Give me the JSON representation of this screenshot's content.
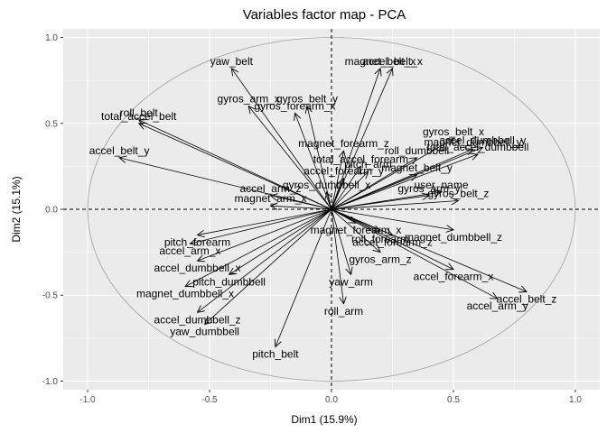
{
  "chart_data": {
    "type": "scatter",
    "title": "Variables factor map - PCA",
    "xlabel": "Dim1 (15.9%)",
    "ylabel": "Dim2 (15.1%)",
    "xlim": [
      -1.1,
      1.1
    ],
    "ylim": [
      -1.05,
      1.05
    ],
    "x_ticks": [
      -1.0,
      -0.5,
      0.0,
      0.5,
      1.0
    ],
    "y_ticks": [
      -1.0,
      -0.5,
      0.0,
      0.5,
      1.0
    ],
    "x_tick_labels": [
      "-1.0",
      "-0.5",
      "0.0",
      "0.5",
      "1.0"
    ],
    "y_tick_labels": [
      "-1.0",
      "-0.5",
      "0.0",
      "0.5",
      "1.0"
    ],
    "grid": true,
    "unit_circle": true,
    "reference_lines": {
      "x": 0,
      "y": 0,
      "style": "dashed"
    },
    "background_color": "#ebebeb",
    "grid_color": "#ffffff",
    "variables": [
      {
        "label": "yaw_belt",
        "x": -0.41,
        "y": 0.82
      },
      {
        "label": "magnet_belt_x",
        "x": 0.2,
        "y": 0.82
      },
      {
        "label": "accel_belt_x",
        "x": 0.25,
        "y": 0.82
      },
      {
        "label": "gyros_belt_y",
        "x": -0.1,
        "y": 0.6
      },
      {
        "label": "gyros_arm_x",
        "x": -0.34,
        "y": 0.6
      },
      {
        "label": "gyros_forearm_x",
        "x": -0.15,
        "y": 0.56
      },
      {
        "label": "roll_belt",
        "x": -0.79,
        "y": 0.52
      },
      {
        "label": "total_accel_belt",
        "x": -0.79,
        "y": 0.5
      },
      {
        "label": "accel_belt_y",
        "x": -0.87,
        "y": 0.3
      },
      {
        "label": "gyros_belt_x",
        "x": 0.5,
        "y": 0.41
      },
      {
        "label": "magnet_dumbbell_y",
        "x": 0.58,
        "y": 0.35
      },
      {
        "label": "accel_dumbbell_y",
        "x": 0.62,
        "y": 0.36
      },
      {
        "label": "total_accel_dumbbell",
        "x": 0.6,
        "y": 0.32
      },
      {
        "label": "roll_dumbbell",
        "x": 0.35,
        "y": 0.3
      },
      {
        "label": "magnet_forearm_z",
        "x": 0.05,
        "y": 0.34
      },
      {
        "label": "total_accel_forearm",
        "x": 0.12,
        "y": 0.25
      },
      {
        "label": "pitch_arm",
        "x": 0.15,
        "y": 0.22
      },
      {
        "label": "magnet_belt_y",
        "x": 0.35,
        "y": 0.2
      },
      {
        "label": "accel_forearm_y",
        "x": 0.05,
        "y": 0.18
      },
      {
        "label": "accel_arm_z",
        "x": -0.25,
        "y": 0.08
      },
      {
        "label": "gyros_dumbbell_x",
        "x": -0.02,
        "y": 0.1
      },
      {
        "label": "magnet_arm_x",
        "x": -0.25,
        "y": 0.02
      },
      {
        "label": "gyros_arm_y",
        "x": 0.4,
        "y": 0.08
      },
      {
        "label": "user_name",
        "x": 0.45,
        "y": 0.1
      },
      {
        "label": "gyros_belt_z",
        "x": 0.52,
        "y": 0.05
      },
      {
        "label": "magnet_forearm_x",
        "x": 0.1,
        "y": -0.08
      },
      {
        "label": "roll_forearm",
        "x": 0.2,
        "y": -0.13
      },
      {
        "label": "accel_forearm_z",
        "x": 0.25,
        "y": -0.15
      },
      {
        "label": "magnet_dumbbell_z",
        "x": 0.5,
        "y": -0.12
      },
      {
        "label": "gyros_arm_z",
        "x": 0.2,
        "y": -0.25
      },
      {
        "label": "pitch_forearm",
        "x": -0.55,
        "y": -0.15
      },
      {
        "label": "accel_arm_x",
        "x": -0.58,
        "y": -0.2
      },
      {
        "label": "accel_dumbbell_x",
        "x": -0.55,
        "y": -0.3
      },
      {
        "label": "pitch_dumbbell",
        "x": -0.42,
        "y": -0.38
      },
      {
        "label": "magnet_dumbbell_x",
        "x": -0.6,
        "y": -0.45
      },
      {
        "label": "yaw_arm",
        "x": 0.08,
        "y": -0.38
      },
      {
        "label": "accel_forearm_x",
        "x": 0.5,
        "y": -0.35
      },
      {
        "label": "accel_belt_z",
        "x": 0.8,
        "y": -0.48
      },
      {
        "label": "accel_arm_y",
        "x": 0.68,
        "y": -0.52
      },
      {
        "label": "accel_dumbbell_z",
        "x": -0.55,
        "y": -0.6
      },
      {
        "label": "yaw_dumbbell",
        "x": -0.52,
        "y": -0.67
      },
      {
        "label": "roll_arm",
        "x": 0.05,
        "y": -0.55
      },
      {
        "label": "pitch_belt",
        "x": -0.23,
        "y": -0.8
      }
    ]
  }
}
